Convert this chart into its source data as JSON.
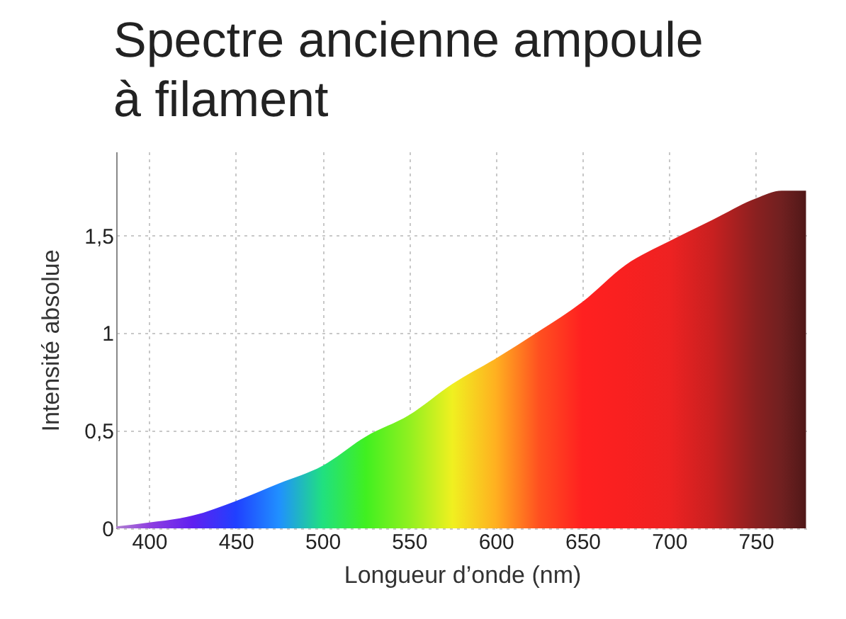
{
  "chart_data": {
    "type": "area",
    "title": "Spectre ancienne ampoule à filament",
    "xlabel": "Longueur d’onde (nm)",
    "ylabel": "Intensité absolue",
    "x": [
      381,
      400,
      425,
      450,
      475,
      500,
      525,
      550,
      575,
      600,
      625,
      650,
      675,
      700,
      725,
      750,
      765,
      779
    ],
    "values": [
      0.01,
      0.03,
      0.065,
      0.14,
      0.23,
      0.32,
      0.47,
      0.58,
      0.74,
      0.87,
      1.01,
      1.16,
      1.35,
      1.47,
      1.58,
      1.69,
      1.73,
      1.73
    ],
    "colors": [
      "#b080d0",
      "#9040e0",
      "#6020f0",
      "#2040ff",
      "#2090ff",
      "#20e080",
      "#40f020",
      "#90f020",
      "#f0f020",
      "#ffb020",
      "#ff5020",
      "#ff2020",
      "#f82020",
      "#ee2222",
      "#c82020",
      "#8a2020",
      "#702020",
      "#501818"
    ],
    "xlim": [
      381,
      780
    ],
    "xticks": [
      400,
      450,
      500,
      550,
      600,
      650,
      700,
      750
    ],
    "ylim": [
      0,
      1.93
    ],
    "yticks": [
      0,
      {
        "value": 0.5,
        "label": "0,5"
      },
      1,
      {
        "value": 1.5,
        "label": "1,5"
      }
    ],
    "grid": true
  }
}
